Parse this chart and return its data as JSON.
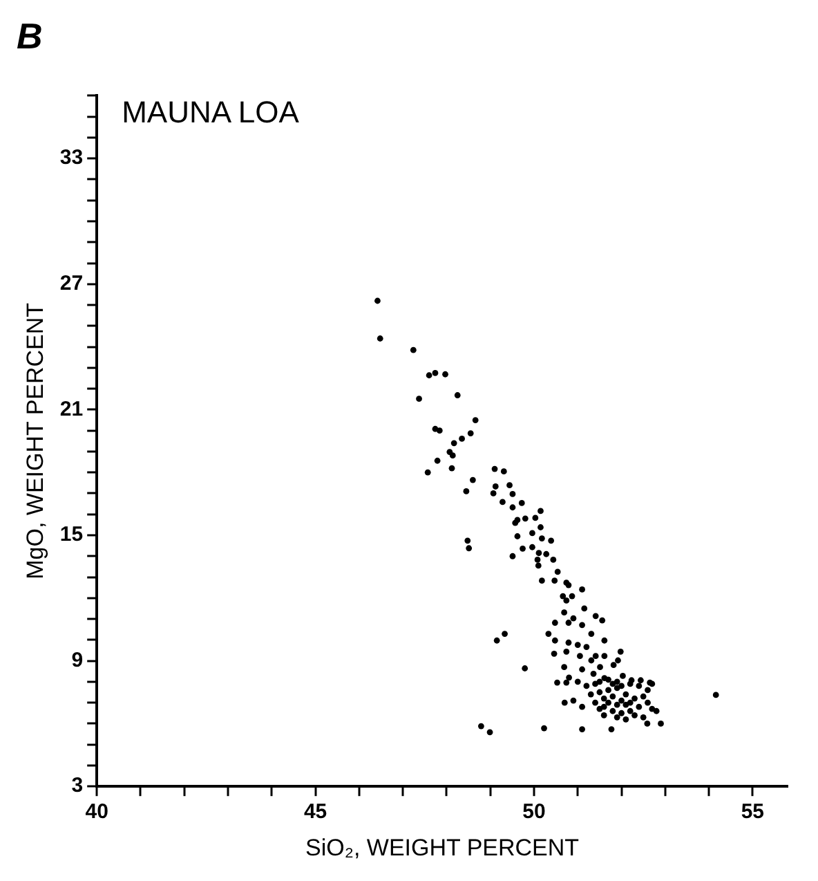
{
  "chart_data": {
    "type": "scatter",
    "title": "B",
    "xlabel": "SiO₂, WEIGHT PERCENT",
    "ylabel": "MgO, WEIGHT PERCENT",
    "annotations": [
      "MAUNA LOA"
    ],
    "xlim": [
      40,
      55.8
    ],
    "ylim": [
      3,
      36
    ],
    "xticks": [
      40,
      {
        "value": 41,
        "label": null
      },
      {
        "value": 42,
        "label": null
      },
      {
        "value": 43,
        "label": null
      },
      {
        "value": 44,
        "label": null
      },
      45,
      {
        "value": 46,
        "label": null
      },
      {
        "value": 47,
        "label": null
      },
      {
        "value": 48,
        "label": null
      },
      {
        "value": 49,
        "label": null
      },
      50,
      {
        "value": 51,
        "label": null
      },
      {
        "value": 52,
        "label": null
      },
      {
        "value": 53,
        "label": null
      },
      {
        "value": 54,
        "label": null
      },
      55
    ],
    "yticks": [
      3,
      {
        "value": 4,
        "label": null
      },
      {
        "value": 5,
        "label": null
      },
      {
        "value": 6,
        "label": null
      },
      {
        "value": 7,
        "label": null
      },
      {
        "value": 8,
        "label": null
      },
      9,
      {
        "value": 10,
        "label": null
      },
      {
        "value": 11,
        "label": null
      },
      {
        "value": 12,
        "label": null
      },
      {
        "value": 13,
        "label": null
      },
      {
        "value": 14,
        "label": null
      },
      15,
      {
        "value": 16,
        "label": null
      },
      {
        "value": 17,
        "label": null
      },
      {
        "value": 18,
        "label": null
      },
      {
        "value": 19,
        "label": null
      },
      {
        "value": 20,
        "label": null
      },
      21,
      {
        "value": 22,
        "label": null
      },
      {
        "value": 23,
        "label": null
      },
      {
        "value": 24,
        "label": null
      },
      {
        "value": 25,
        "label": null
      },
      {
        "value": 26,
        "label": null
      },
      27,
      {
        "value": 28,
        "label": null
      },
      {
        "value": 29,
        "label": null
      },
      {
        "value": 30,
        "label": null
      },
      {
        "value": 31,
        "label": null
      },
      {
        "value": 32,
        "label": null
      },
      33,
      {
        "value": 34,
        "label": null
      },
      {
        "value": 35,
        "label": null
      },
      {
        "value": 36,
        "label": null
      }
    ],
    "grid": false,
    "marker": "circle",
    "series": [
      {
        "color": "#000000",
        "x": [
          46.42,
          46.48,
          47.24,
          47.6,
          47.74,
          47.97,
          47.37,
          48.25,
          48.66,
          47.74,
          47.84,
          48.55,
          48.35,
          48.17,
          48.07,
          48.14,
          47.79,
          47.57,
          48.12,
          49.1,
          49.31,
          48.6,
          48.45,
          49.07,
          49.44,
          49.51,
          49.12,
          49.28,
          49.51,
          49.72,
          49.57,
          49.62,
          49.8,
          50.03,
          50.15,
          50.15,
          49.62,
          49.96,
          50.18,
          50.39,
          48.48,
          48.51,
          49.51,
          49.74,
          49.96,
          50.11,
          50.28,
          50.08,
          50.1,
          50.44,
          50.54,
          50.47,
          50.18,
          50.74,
          50.79,
          51.1,
          50.66,
          50.87,
          50.74,
          51.15,
          51.41,
          51.56,
          50.69,
          50.9,
          50.48,
          50.79,
          51.1,
          51.31,
          51.61,
          50.33,
          50.48,
          50.79,
          51.0,
          51.2,
          51.41,
          51.61,
          51.98,
          50.46,
          50.74,
          51.05,
          51.31,
          50.69,
          51.1,
          51.51,
          51.82,
          51.92,
          51.36,
          51.61,
          52.03,
          52.23,
          52.44,
          52.65,
          50.53,
          50.74,
          49.15,
          49.33,
          49.79,
          54.16,
          50.23,
          51.1,
          51.77,
          52.59,
          52.9,
          48.79,
          48.99,
          51.5,
          51.6,
          51.7,
          51.8,
          51.9,
          52.0,
          52.1,
          51.7,
          51.9,
          52.2,
          52.3,
          52.4,
          51.6,
          51.8,
          52.0,
          52.2,
          51.4,
          51.5,
          52.5,
          52.6,
          52.7,
          52.6,
          52.4,
          52.2,
          51.9,
          51.7,
          51.5,
          51.3,
          51.2,
          52.8,
          52.1,
          51.9,
          51.6,
          52.3,
          52.5,
          51.4,
          52.0,
          52.1,
          51.8,
          52.7,
          50.7,
          50.9,
          51.1,
          50.8,
          51.0
        ],
        "values": [
          26.2,
          24.4,
          23.85,
          22.64,
          22.75,
          22.69,
          21.52,
          21.69,
          20.5,
          20.08,
          20.0,
          19.87,
          19.61,
          19.4,
          18.98,
          18.81,
          18.56,
          18.0,
          18.2,
          18.17,
          18.05,
          17.64,
          17.1,
          17.0,
          17.39,
          16.97,
          17.33,
          16.59,
          16.33,
          16.54,
          15.59,
          15.73,
          15.8,
          15.83,
          16.16,
          15.38,
          14.95,
          15.1,
          14.85,
          14.74,
          14.74,
          14.38,
          14.0,
          14.36,
          14.43,
          14.15,
          14.1,
          13.83,
          13.55,
          13.83,
          13.25,
          12.83,
          12.83,
          12.73,
          12.62,
          12.41,
          12.09,
          12.09,
          11.88,
          11.5,
          11.14,
          10.93,
          11.31,
          11.03,
          10.82,
          10.82,
          10.71,
          10.29,
          9.97,
          10.29,
          9.97,
          9.87,
          9.76,
          9.66,
          9.23,
          9.23,
          9.44,
          9.34,
          9.44,
          9.23,
          9.02,
          8.7,
          8.59,
          8.7,
          8.8,
          9.02,
          8.38,
          8.17,
          8.28,
          8.07,
          8.07,
          7.96,
          7.96,
          7.96,
          9.97,
          10.29,
          8.64,
          7.37,
          5.78,
          5.73,
          5.73,
          6.0,
          6.0,
          5.88,
          5.59,
          7.5,
          7.2,
          7.0,
          7.3,
          6.9,
          7.1,
          7.4,
          7.6,
          7.7,
          7.0,
          7.2,
          6.8,
          6.8,
          6.6,
          6.5,
          6.6,
          7.0,
          6.7,
          7.3,
          7.0,
          6.7,
          7.6,
          7.8,
          7.9,
          8.0,
          8.1,
          8.0,
          7.4,
          7.8,
          6.6,
          6.2,
          6.3,
          6.4,
          6.4,
          6.3,
          7.9,
          7.8,
          6.9,
          7.9,
          7.9,
          7.0,
          7.1,
          6.8,
          8.2,
          8.0
        ]
      }
    ]
  }
}
